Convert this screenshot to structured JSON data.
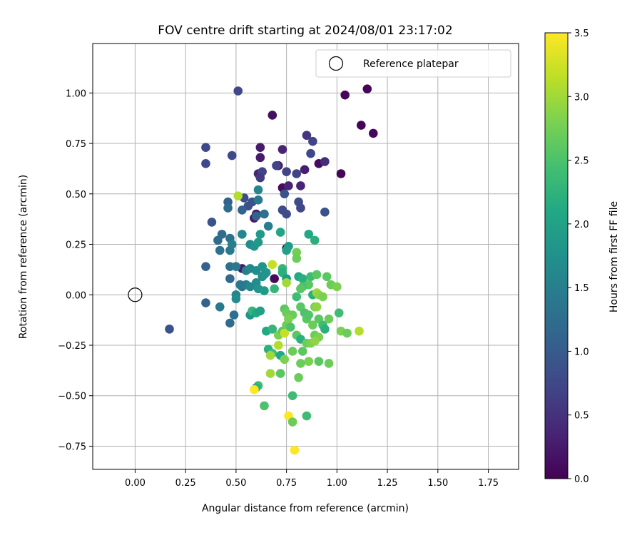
{
  "chart_data": {
    "type": "scatter",
    "title": "FOV centre drift starting at 2024/08/01 23:17:02",
    "xlabel": "Angular distance from reference (arcmin)",
    "ylabel": "Rotation from reference (arcmin)",
    "colorbar_label": "Hours from first FF file",
    "xlim": [
      -0.21,
      1.9
    ],
    "ylim": [
      -0.865,
      1.245
    ],
    "xticks": [
      0.0,
      0.25,
      0.5,
      0.75,
      1.0,
      1.25,
      1.5,
      1.75
    ],
    "xtick_labels": [
      "0.00",
      "0.25",
      "0.50",
      "0.75",
      "1.00",
      "1.25",
      "1.50",
      "1.75"
    ],
    "yticks": [
      -0.75,
      -0.5,
      -0.25,
      0.0,
      0.25,
      0.5,
      0.75,
      1.0
    ],
    "ytick_labels": [
      "−0.75",
      "−0.50",
      "−0.25",
      "0.00",
      "0.25",
      "0.50",
      "0.75",
      "1.00"
    ],
    "colorbar_range": [
      0.0,
      3.5
    ],
    "colorbar_ticks": [
      0.0,
      0.5,
      1.0,
      1.5,
      2.0,
      2.5,
      3.0,
      3.5
    ],
    "colorbar_tick_labels": [
      "0.0",
      "0.5",
      "1.0",
      "1.5",
      "2.0",
      "2.5",
      "3.0",
      "3.5"
    ],
    "colormap": "viridis",
    "grid": true,
    "legend": {
      "placement": "top-right",
      "entries": [
        {
          "label": "Reference platepar",
          "marker": "open-circle"
        }
      ]
    },
    "reference_point": {
      "x": 0.0,
      "y": 0.0
    },
    "points": [
      [
        1.04,
        0.99,
        0.05
      ],
      [
        1.15,
        1.02,
        0.05
      ],
      [
        1.12,
        0.84,
        0.05
      ],
      [
        1.18,
        0.8,
        0.05
      ],
      [
        1.02,
        0.6,
        0.05
      ],
      [
        0.68,
        0.89,
        0.15
      ],
      [
        0.51,
        1.01,
        0.75
      ],
      [
        0.73,
        0.53,
        0.1
      ],
      [
        0.91,
        0.65,
        0.1
      ],
      [
        0.75,
        0.23,
        0.1
      ],
      [
        0.69,
        0.08,
        0.1
      ],
      [
        0.62,
        0.73,
        0.25
      ],
      [
        0.62,
        0.68,
        0.25
      ],
      [
        0.71,
        0.64,
        0.25
      ],
      [
        0.73,
        0.72,
        0.35
      ],
      [
        0.76,
        0.54,
        0.35
      ],
      [
        0.82,
        0.54,
        0.35
      ],
      [
        0.6,
        0.4,
        0.25
      ],
      [
        0.59,
        0.38,
        0.25
      ],
      [
        0.53,
        0.13,
        0.25
      ],
      [
        0.61,
        0.6,
        0.35
      ],
      [
        0.84,
        0.62,
        0.3
      ],
      [
        0.35,
        0.73,
        0.75
      ],
      [
        0.35,
        0.65,
        0.75
      ],
      [
        0.48,
        0.69,
        0.75
      ],
      [
        0.85,
        0.79,
        0.55
      ],
      [
        0.88,
        0.76,
        0.7
      ],
      [
        0.87,
        0.7,
        0.75
      ],
      [
        0.94,
        0.66,
        0.45
      ],
      [
        0.75,
        0.61,
        0.7
      ],
      [
        0.7,
        0.64,
        0.7
      ],
      [
        0.8,
        0.6,
        0.7
      ],
      [
        0.63,
        0.61,
        0.7
      ],
      [
        0.62,
        0.58,
        0.6
      ],
      [
        0.81,
        0.46,
        0.8
      ],
      [
        0.82,
        0.43,
        0.75
      ],
      [
        0.74,
        0.5,
        0.9
      ],
      [
        0.73,
        0.42,
        0.8
      ],
      [
        0.75,
        0.4,
        0.8
      ],
      [
        0.94,
        0.41,
        0.9
      ],
      [
        0.38,
        0.36,
        0.9
      ],
      [
        0.46,
        0.46,
        1.1
      ],
      [
        0.46,
        0.43,
        1.2
      ],
      [
        0.54,
        0.48,
        0.8
      ],
      [
        0.56,
        0.44,
        0.85
      ],
      [
        0.58,
        0.46,
        0.9
      ],
      [
        0.53,
        0.42,
        1.1
      ],
      [
        0.6,
        0.39,
        1.1
      ],
      [
        0.61,
        0.47,
        1.4
      ],
      [
        0.61,
        0.52,
        1.6
      ],
      [
        0.41,
        0.27,
        1.2
      ],
      [
        0.43,
        0.3,
        1.25
      ],
      [
        0.42,
        0.22,
        1.3
      ],
      [
        0.47,
        0.28,
        1.3
      ],
      [
        0.47,
        0.22,
        1.4
      ],
      [
        0.48,
        0.25,
        1.5
      ],
      [
        0.53,
        0.3,
        1.6
      ],
      [
        0.57,
        0.25,
        1.7
      ],
      [
        0.59,
        0.24,
        1.8
      ],
      [
        0.61,
        0.26,
        1.85
      ],
      [
        0.62,
        0.3,
        1.9
      ],
      [
        0.66,
        0.34,
        1.5
      ],
      [
        0.64,
        0.4,
        1.3
      ],
      [
        0.72,
        0.31,
        2.05
      ],
      [
        0.76,
        0.24,
        1.9
      ],
      [
        0.75,
        0.22,
        2.0
      ],
      [
        0.86,
        0.3,
        2.1
      ],
      [
        0.89,
        0.27,
        2.2
      ],
      [
        0.51,
        0.49,
        3.1
      ],
      [
        0.8,
        0.21,
        2.75
      ],
      [
        0.8,
        0.18,
        2.7
      ],
      [
        0.35,
        0.14,
        1.1
      ],
      [
        0.47,
        0.14,
        1.3
      ],
      [
        0.5,
        0.14,
        1.4
      ],
      [
        0.47,
        0.08,
        1.2
      ],
      [
        0.55,
        0.12,
        1.5
      ],
      [
        0.57,
        0.13,
        1.6
      ],
      [
        0.6,
        0.12,
        1.7
      ],
      [
        0.63,
        0.14,
        1.8
      ],
      [
        0.65,
        0.11,
        1.9
      ],
      [
        0.63,
        0.09,
        1.7
      ],
      [
        0.68,
        0.15,
        3.2
      ],
      [
        0.73,
        0.13,
        2.3
      ],
      [
        0.73,
        0.11,
        2.2
      ],
      [
        0.75,
        0.08,
        1.9
      ],
      [
        0.81,
        0.09,
        2.1
      ],
      [
        0.83,
        0.08,
        2.2
      ],
      [
        0.87,
        0.09,
        2.4
      ],
      [
        0.9,
        0.1,
        2.6
      ],
      [
        0.95,
        0.09,
        2.6
      ],
      [
        0.97,
        0.05,
        2.7
      ],
      [
        1.0,
        0.04,
        2.8
      ],
      [
        0.86,
        0.05,
        2.6
      ],
      [
        0.83,
        0.04,
        2.5
      ],
      [
        0.82,
        0.03,
        2.6
      ],
      [
        0.75,
        0.06,
        3.0
      ],
      [
        0.88,
        0.0,
        2.2
      ],
      [
        0.9,
        0.01,
        3.0
      ],
      [
        0.91,
        0.0,
        2.9
      ],
      [
        0.93,
        -0.01,
        2.8
      ],
      [
        0.53,
        0.04,
        1.3
      ],
      [
        0.55,
        0.05,
        1.5
      ],
      [
        0.57,
        0.04,
        1.6
      ],
      [
        0.6,
        0.06,
        1.7
      ],
      [
        0.61,
        0.03,
        1.8
      ],
      [
        0.64,
        0.02,
        1.9
      ],
      [
        0.5,
        0.0,
        1.6
      ],
      [
        0.5,
        -0.02,
        1.7
      ],
      [
        0.35,
        -0.04,
        1.1
      ],
      [
        0.42,
        -0.06,
        1.4
      ],
      [
        0.49,
        -0.1,
        1.3
      ],
      [
        0.47,
        -0.14,
        1.2
      ],
      [
        0.57,
        -0.1,
        1.8
      ],
      [
        0.58,
        -0.08,
        2.3
      ],
      [
        0.6,
        -0.09,
        2.1
      ],
      [
        0.17,
        -0.17,
        0.9
      ],
      [
        0.74,
        -0.07,
        2.6
      ],
      [
        0.75,
        -0.09,
        2.7
      ],
      [
        0.78,
        -0.1,
        2.7
      ],
      [
        0.82,
        -0.06,
        2.6
      ],
      [
        0.84,
        -0.09,
        2.5
      ],
      [
        0.85,
        -0.12,
        2.6
      ],
      [
        0.86,
        -0.1,
        2.55
      ],
      [
        0.89,
        -0.06,
        2.8
      ],
      [
        0.9,
        -0.06,
        2.9
      ],
      [
        0.91,
        -0.12,
        2.6
      ],
      [
        0.93,
        -0.15,
        2.4
      ],
      [
        0.94,
        -0.17,
        2.2
      ],
      [
        0.96,
        -0.12,
        2.7
      ],
      [
        0.88,
        -0.15,
        2.7
      ],
      [
        0.89,
        -0.2,
        2.7
      ],
      [
        0.91,
        -0.21,
        2.8
      ],
      [
        1.01,
        -0.09,
        2.4
      ],
      [
        1.02,
        -0.18,
        2.8
      ],
      [
        1.05,
        -0.19,
        2.7
      ],
      [
        1.11,
        -0.18,
        3.1
      ],
      [
        0.65,
        -0.18,
        2.1
      ],
      [
        0.68,
        -0.17,
        2.3
      ],
      [
        0.71,
        -0.2,
        2.8
      ],
      [
        0.73,
        -0.18,
        2.6
      ],
      [
        0.75,
        -0.15,
        2.7
      ],
      [
        0.76,
        -0.12,
        2.8
      ],
      [
        0.74,
        -0.19,
        3.2
      ],
      [
        0.77,
        -0.16,
        2.5
      ],
      [
        0.8,
        -0.2,
        2.6
      ],
      [
        0.82,
        -0.22,
        2.2
      ],
      [
        0.85,
        -0.24,
        2.7
      ],
      [
        0.87,
        -0.24,
        2.8
      ],
      [
        0.89,
        -0.23,
        2.9
      ],
      [
        0.66,
        -0.27,
        2.2
      ],
      [
        0.68,
        -0.29,
        2.4
      ],
      [
        0.71,
        -0.25,
        3.1
      ],
      [
        0.72,
        -0.3,
        2.1
      ],
      [
        0.67,
        -0.3,
        3.0
      ],
      [
        0.74,
        -0.32,
        2.8
      ],
      [
        0.78,
        -0.28,
        2.7
      ],
      [
        0.83,
        -0.28,
        2.6
      ],
      [
        0.86,
        -0.33,
        2.8
      ],
      [
        0.82,
        -0.34,
        2.7
      ],
      [
        0.91,
        -0.33,
        2.6
      ],
      [
        0.96,
        -0.34,
        2.7
      ],
      [
        0.67,
        -0.39,
        3.0
      ],
      [
        0.72,
        -0.39,
        2.6
      ],
      [
        0.81,
        -0.41,
        2.7
      ],
      [
        0.61,
        -0.45,
        2.4
      ],
      [
        0.6,
        -0.46,
        2.2
      ],
      [
        0.59,
        -0.47,
        3.5
      ],
      [
        0.64,
        -0.55,
        2.5
      ],
      [
        0.78,
        -0.5,
        2.4
      ],
      [
        0.76,
        -0.6,
        3.5
      ],
      [
        0.78,
        -0.63,
        2.7
      ],
      [
        0.85,
        -0.6,
        2.4
      ],
      [
        0.79,
        -0.77,
        3.5
      ],
      [
        0.62,
        -0.08,
        2.0
      ],
      [
        0.69,
        0.03,
        2.3
      ],
      [
        0.8,
        -0.01,
        2.4
      ],
      [
        0.64,
        0.1,
        1.8
      ],
      [
        0.52,
        0.05,
        1.4
      ]
    ]
  }
}
